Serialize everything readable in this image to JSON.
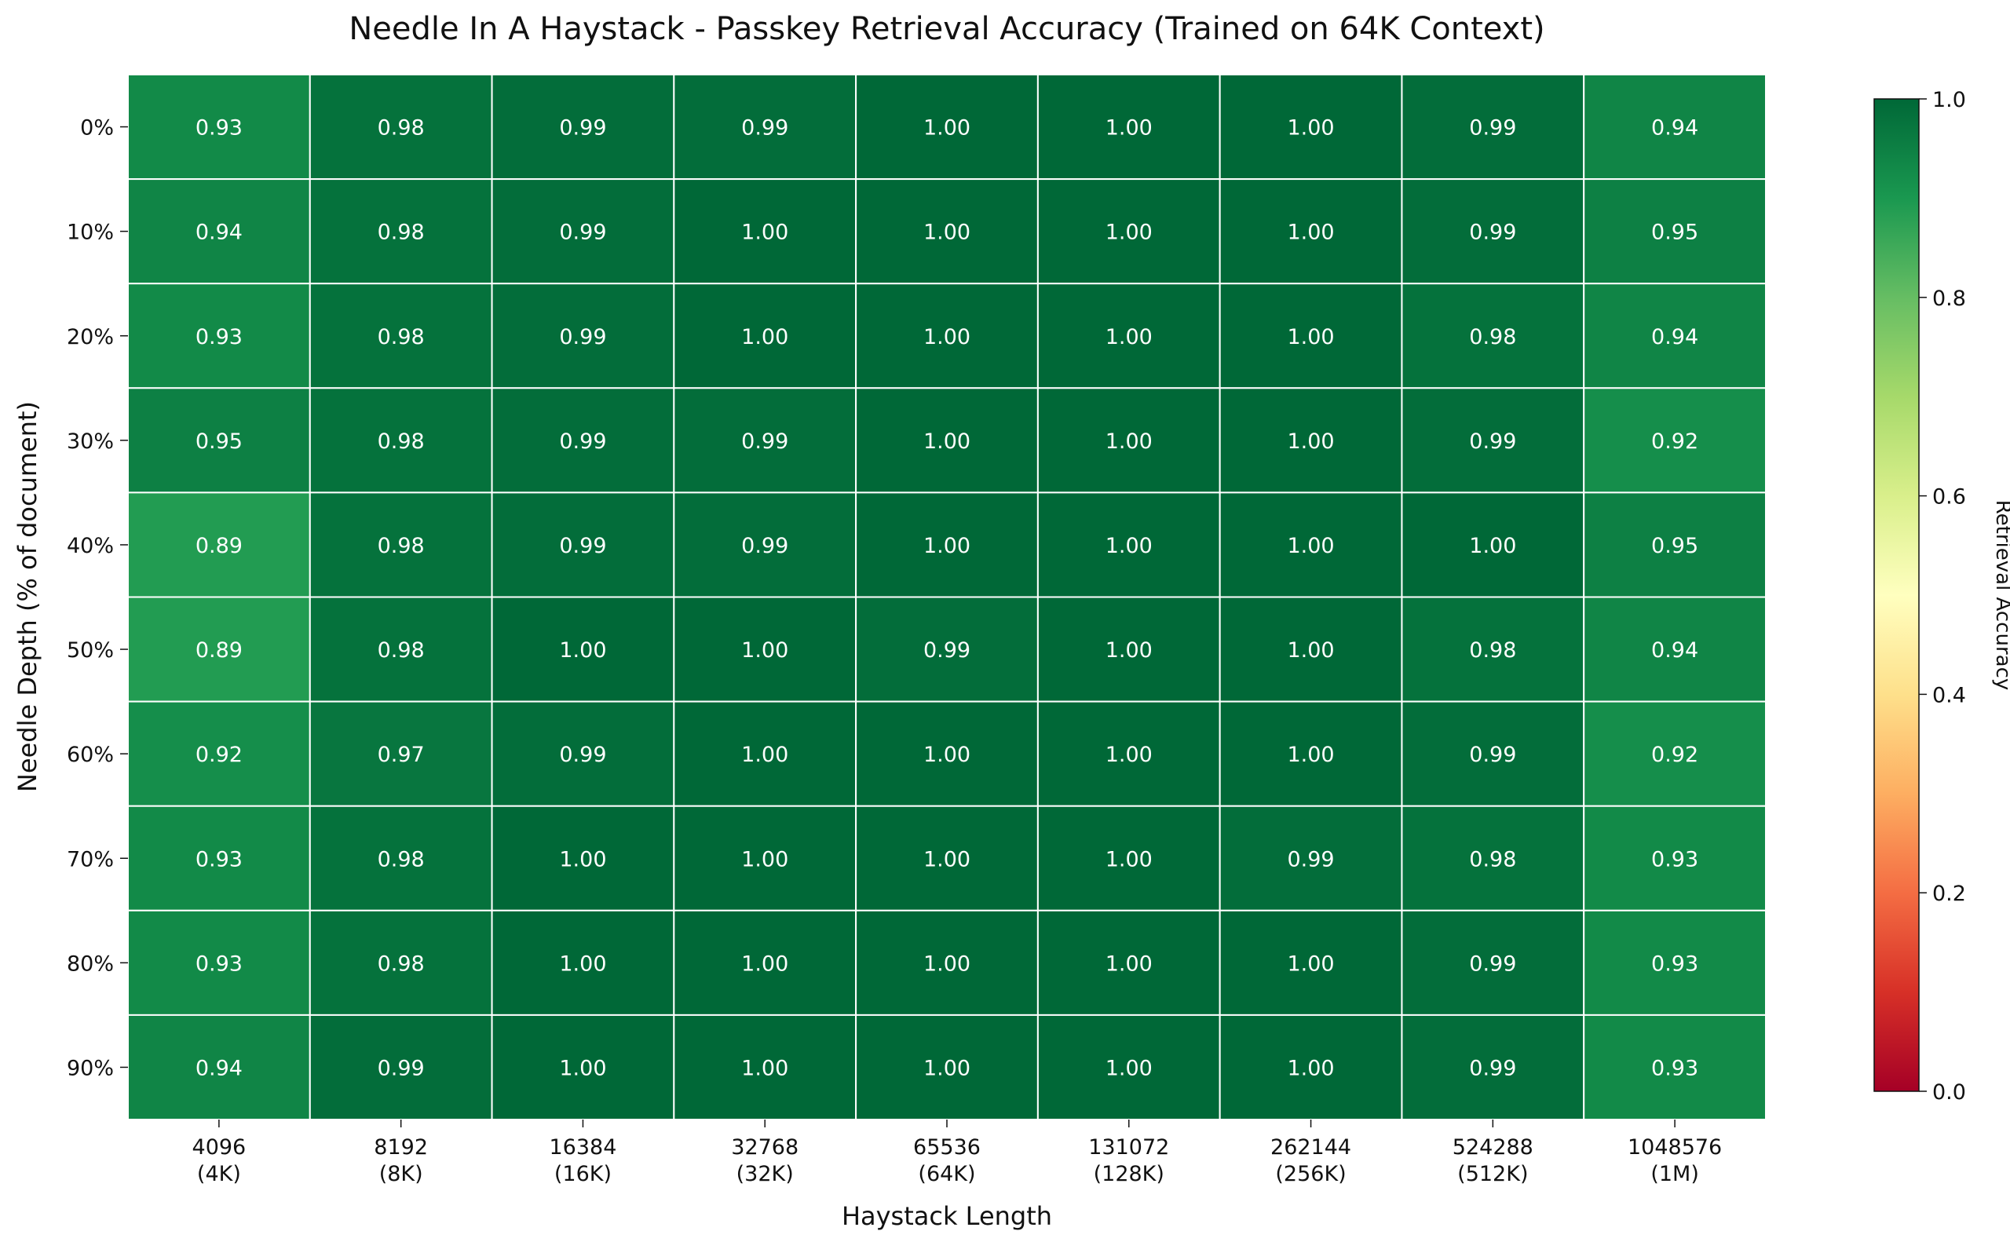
{
  "chart_data": {
    "type": "heatmap",
    "title": "Needle In A Haystack - Passkey Retrieval Accuracy (Trained on 64K Context)",
    "xlabel": "Haystack Length",
    "ylabel": "Needle Depth (% of document)",
    "x_tick_labels": [
      [
        "4096",
        "(4K)"
      ],
      [
        "8192",
        "(8K)"
      ],
      [
        "16384",
        "(16K)"
      ],
      [
        "32768",
        "(32K)"
      ],
      [
        "65536",
        "(64K)"
      ],
      [
        "131072",
        "(128K)"
      ],
      [
        "262144",
        "(256K)"
      ],
      [
        "524288",
        "(512K)"
      ],
      [
        "1048576",
        "(1M)"
      ]
    ],
    "y_tick_labels": [
      "0%",
      "10%",
      "20%",
      "30%",
      "40%",
      "50%",
      "60%",
      "70%",
      "80%",
      "90%"
    ],
    "values": [
      [
        0.93,
        0.98,
        0.99,
        0.99,
        1.0,
        1.0,
        1.0,
        0.99,
        0.94
      ],
      [
        0.94,
        0.98,
        0.99,
        1.0,
        1.0,
        1.0,
        1.0,
        0.99,
        0.95
      ],
      [
        0.93,
        0.98,
        0.99,
        1.0,
        1.0,
        1.0,
        1.0,
        0.98,
        0.94
      ],
      [
        0.95,
        0.98,
        0.99,
        0.99,
        1.0,
        1.0,
        1.0,
        0.99,
        0.92
      ],
      [
        0.89,
        0.98,
        0.99,
        0.99,
        1.0,
        1.0,
        1.0,
        1.0,
        0.95
      ],
      [
        0.89,
        0.98,
        1.0,
        1.0,
        0.99,
        1.0,
        1.0,
        0.98,
        0.94
      ],
      [
        0.92,
        0.97,
        0.99,
        1.0,
        1.0,
        1.0,
        1.0,
        0.99,
        0.92
      ],
      [
        0.93,
        0.98,
        1.0,
        1.0,
        1.0,
        1.0,
        0.99,
        0.98,
        0.93
      ],
      [
        0.93,
        0.98,
        1.0,
        1.0,
        1.0,
        1.0,
        1.0,
        0.99,
        0.93
      ],
      [
        0.94,
        0.99,
        1.0,
        1.0,
        1.0,
        1.0,
        1.0,
        0.99,
        0.93
      ]
    ],
    "value_format": "0.00",
    "colormap": "RdYlGn",
    "vmin": 0.0,
    "vmax": 1.0,
    "colorbar": {
      "label": "Retrieval Accuracy",
      "ticks": [
        0.0,
        0.2,
        0.4,
        0.6,
        0.8,
        1.0
      ],
      "tick_labels": [
        "0.0",
        "0.2",
        "0.4",
        "0.6",
        "0.8",
        "1.0"
      ]
    },
    "cell_border_color": "#ffffff",
    "annotation_color": "#ffffff"
  }
}
